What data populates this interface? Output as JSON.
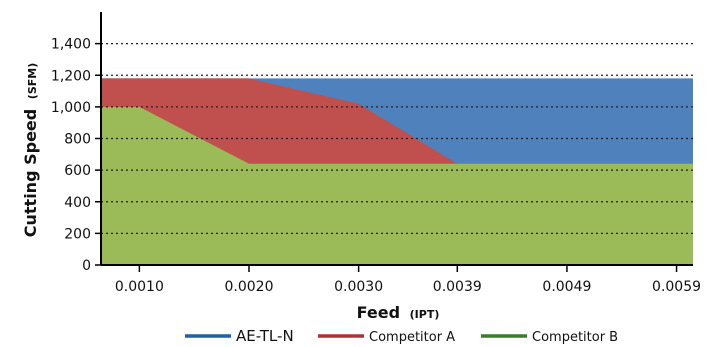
{
  "chart_data": {
    "type": "area",
    "xlabel": "Feed",
    "xlabel_unit": "(IPT)",
    "ylabel": "Cutting Speed",
    "ylabel_unit": "(SFM)",
    "x_tick_labels": [
      "0.0010",
      "0.0020",
      "0.0030",
      "0.0039",
      "0.0049",
      "0.0059"
    ],
    "y_tick_labels": [
      "0",
      "200",
      "400",
      "600",
      "800",
      "1,000",
      "1,200",
      "1,400"
    ],
    "y_ticks": [
      0,
      200,
      400,
      600,
      800,
      1000,
      1200,
      1400
    ],
    "ylim": [
      0,
      1600
    ],
    "xlim": [
      0.00065,
      0.00605
    ],
    "grid": "horizontal dotted",
    "legend_position": "bottom",
    "series": [
      {
        "name": "AE-TL-N",
        "color": "#4f81bd",
        "legend_color": "#1f5fa6",
        "x": [
          0.00065,
          0.00605
        ],
        "y": [
          1180,
          1180
        ]
      },
      {
        "name": "Competitor A",
        "color": "#c0504d",
        "legend_color": "#b0303a",
        "x": [
          0.00065,
          0.002,
          0.003,
          0.0039
        ],
        "y": [
          1180,
          1180,
          1020,
          640
        ]
      },
      {
        "name": "Competitor B",
        "color": "#9bbb59",
        "legend_color": "#3c7a2e",
        "x": [
          0.00065,
          0.001,
          0.002,
          0.00605
        ],
        "y": [
          1000,
          1000,
          640,
          640
        ]
      }
    ]
  }
}
